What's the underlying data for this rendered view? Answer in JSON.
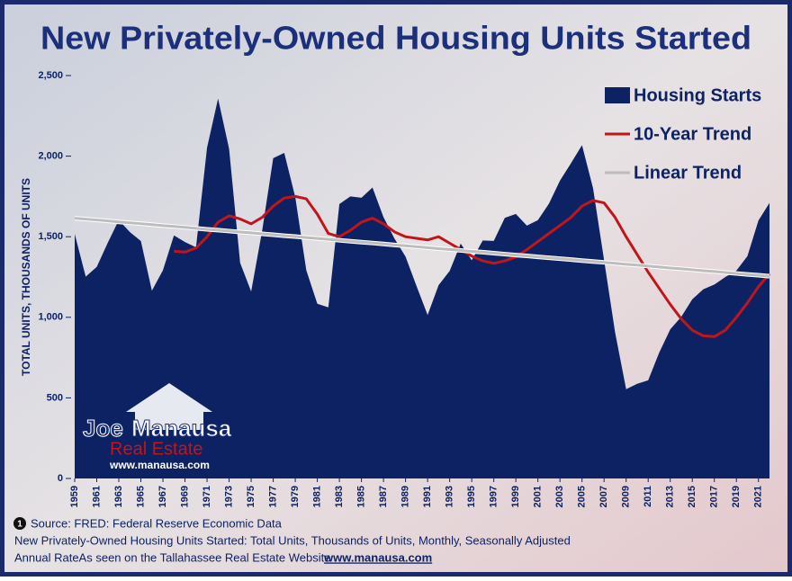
{
  "chart_data": {
    "type": "area",
    "title": "New Privately-Owned Housing Units Started",
    "y_label": "TOTAL UNITS, THOUSANDS OF UNITS",
    "x": [
      1959,
      1960,
      1961,
      1962,
      1963,
      1964,
      1965,
      1966,
      1967,
      1968,
      1969,
      1970,
      1971,
      1972,
      1973,
      1974,
      1975,
      1976,
      1977,
      1978,
      1979,
      1980,
      1981,
      1982,
      1983,
      1984,
      1985,
      1986,
      1987,
      1988,
      1989,
      1990,
      1991,
      1992,
      1993,
      1994,
      1995,
      1996,
      1997,
      1998,
      1999,
      2000,
      2001,
      2002,
      2003,
      2004,
      2005,
      2006,
      2007,
      2008,
      2009,
      2010,
      2011,
      2012,
      2013,
      2014,
      2015,
      2016,
      2017,
      2018,
      2019,
      2020,
      2021,
      2022
    ],
    "xlim": [
      1959,
      2022
    ],
    "xticks": [
      1959,
      1961,
      1963,
      1965,
      1967,
      1969,
      1971,
      1973,
      1975,
      1977,
      1979,
      1981,
      1983,
      1985,
      1987,
      1989,
      1991,
      1993,
      1995,
      1997,
      1999,
      2001,
      2003,
      2005,
      2007,
      2009,
      2011,
      2013,
      2015,
      2017,
      2019,
      2021
    ],
    "ylim": [
      0,
      2500
    ],
    "yticks": [
      0,
      500,
      {
        "value": 1000,
        "label": "1,000"
      },
      {
        "value": 1500,
        "label": "1,500"
      },
      {
        "value": 2000,
        "label": "2,000"
      },
      {
        "value": 2500,
        "label": "2,500"
      }
    ],
    "legend": "upper right",
    "series": [
      {
        "name": "Housing Starts",
        "color": "#0d2263",
        "kind": "area",
        "values": [
          1517,
          1252,
          1313,
          1463,
          1603,
          1529,
          1473,
          1165,
          1292,
          1508,
          1467,
          1434,
          2052,
          2357,
          2045,
          1338,
          1160,
          1538,
          1987,
          2020,
          1745,
          1292,
          1084,
          1062,
          1703,
          1750,
          1742,
          1805,
          1621,
          1488,
          1376,
          1193,
          1014,
          1200,
          1288,
          1457,
          1354,
          1477,
          1474,
          1617,
          1641,
          1569,
          1603,
          1705,
          1848,
          1956,
          2068,
          1801,
          1355,
          906,
          554,
          587,
          609,
          781,
          925,
          1003,
          1112,
          1174,
          1203,
          1250,
          1290,
          1380,
          1601,
          1710
        ]
      },
      {
        "name": "10-Year Trend",
        "color": "#c0161b",
        "kind": "line",
        "values": [
          null,
          null,
          null,
          null,
          null,
          null,
          null,
          null,
          null,
          1410,
          1405,
          1430,
          1500,
          1590,
          1630,
          1610,
          1580,
          1620,
          1690,
          1740,
          1750,
          1735,
          1640,
          1520,
          1500,
          1540,
          1590,
          1615,
          1580,
          1530,
          1500,
          1490,
          1480,
          1500,
          1460,
          1420,
          1380,
          1350,
          1335,
          1350,
          1375,
          1420,
          1470,
          1520,
          1570,
          1620,
          1690,
          1725,
          1710,
          1620,
          1500,
          1390,
          1280,
          1180,
          1080,
          990,
          920,
          885,
          880,
          920,
          1000,
          1090,
          1190,
          1270
        ]
      },
      {
        "name": "Linear Trend",
        "color": "#bdbdbd",
        "kind": "line",
        "values": [
          1615,
          1609,
          1604,
          1598,
          1592,
          1586,
          1581,
          1575,
          1569,
          1564,
          1558,
          1552,
          1546,
          1541,
          1535,
          1529,
          1524,
          1518,
          1512,
          1506,
          1501,
          1495,
          1489,
          1484,
          1478,
          1472,
          1466,
          1461,
          1455,
          1449,
          1444,
          1438,
          1432,
          1426,
          1421,
          1415,
          1409,
          1404,
          1398,
          1392,
          1386,
          1381,
          1375,
          1369,
          1364,
          1358,
          1352,
          1346,
          1341,
          1335,
          1329,
          1324,
          1318,
          1312,
          1306,
          1301,
          1295,
          1289,
          1284,
          1278,
          1272,
          1266,
          1261,
          1255
        ]
      }
    ]
  },
  "logo": {
    "first": "Joe",
    "last": "Manausa",
    "tag": "Real Estate",
    "url": "www.manausa.com"
  },
  "footer": {
    "badge": "1",
    "source": "Source: FRED: Federal Reserve Economic Data",
    "description": "New Privately-Owned Housing Units Started: Total Units, Thousands of Units, Monthly, Seasonally Adjusted",
    "seen": "Annual RateAs seen on the Tallahassee Real Estate Website",
    "site": "www.manausa.com"
  }
}
